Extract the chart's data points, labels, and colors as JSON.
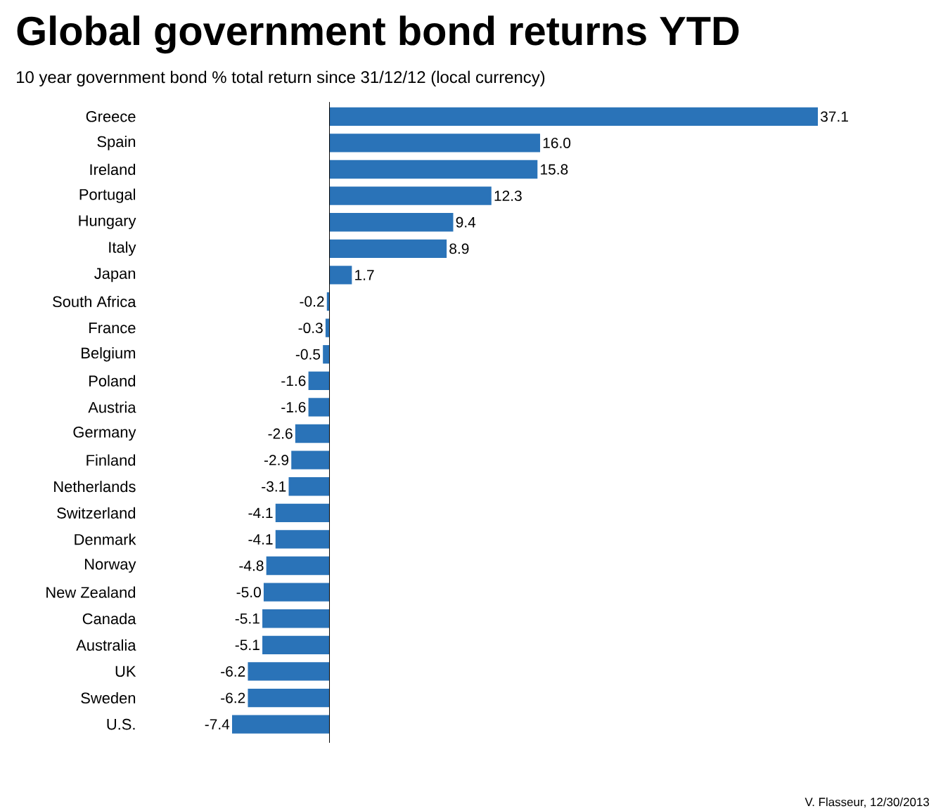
{
  "chart_data": {
    "type": "bar",
    "orientation": "horizontal",
    "title": "Global government bond returns YTD",
    "subtitle": "10 year government bond % total return since 31/12/12 (local currency)",
    "categories": [
      "Greece",
      "Spain",
      "Ireland",
      "Portugal",
      "Hungary",
      "Italy",
      "Japan",
      "South Africa",
      "France",
      "Belgium",
      "Poland",
      "Austria",
      "Germany",
      "Finland",
      "Netherlands",
      "Switzerland",
      "Denmark",
      "Norway",
      "New Zealand",
      "Canada",
      "Australia",
      "UK",
      "Sweden",
      "U.S."
    ],
    "values": [
      37.1,
      16.0,
      15.8,
      12.3,
      9.4,
      8.9,
      1.7,
      -0.2,
      -0.3,
      -0.5,
      -1.6,
      -1.6,
      -2.6,
      -2.9,
      -3.1,
      -4.1,
      -4.1,
      -4.8,
      -5.0,
      -5.1,
      -5.1,
      -6.2,
      -6.2,
      -7.4
    ],
    "color": "#2a73b8",
    "value_labels": [
      "37.1",
      "16.0",
      "15.8",
      "12.3",
      "9.4",
      "8.9",
      "1.7",
      "-0.2",
      "-0.3",
      "-0.5",
      "-1.6",
      "-1.6",
      "-2.6",
      "-2.9",
      "-3.1",
      "-4.1",
      "-4.1",
      "-4.8",
      "-5.0",
      "-5.1",
      "-5.1",
      "-6.2",
      "-6.2",
      "-7.4"
    ],
    "annotations": [
      "V. Flasseur, 12/30/2013"
    ]
  }
}
